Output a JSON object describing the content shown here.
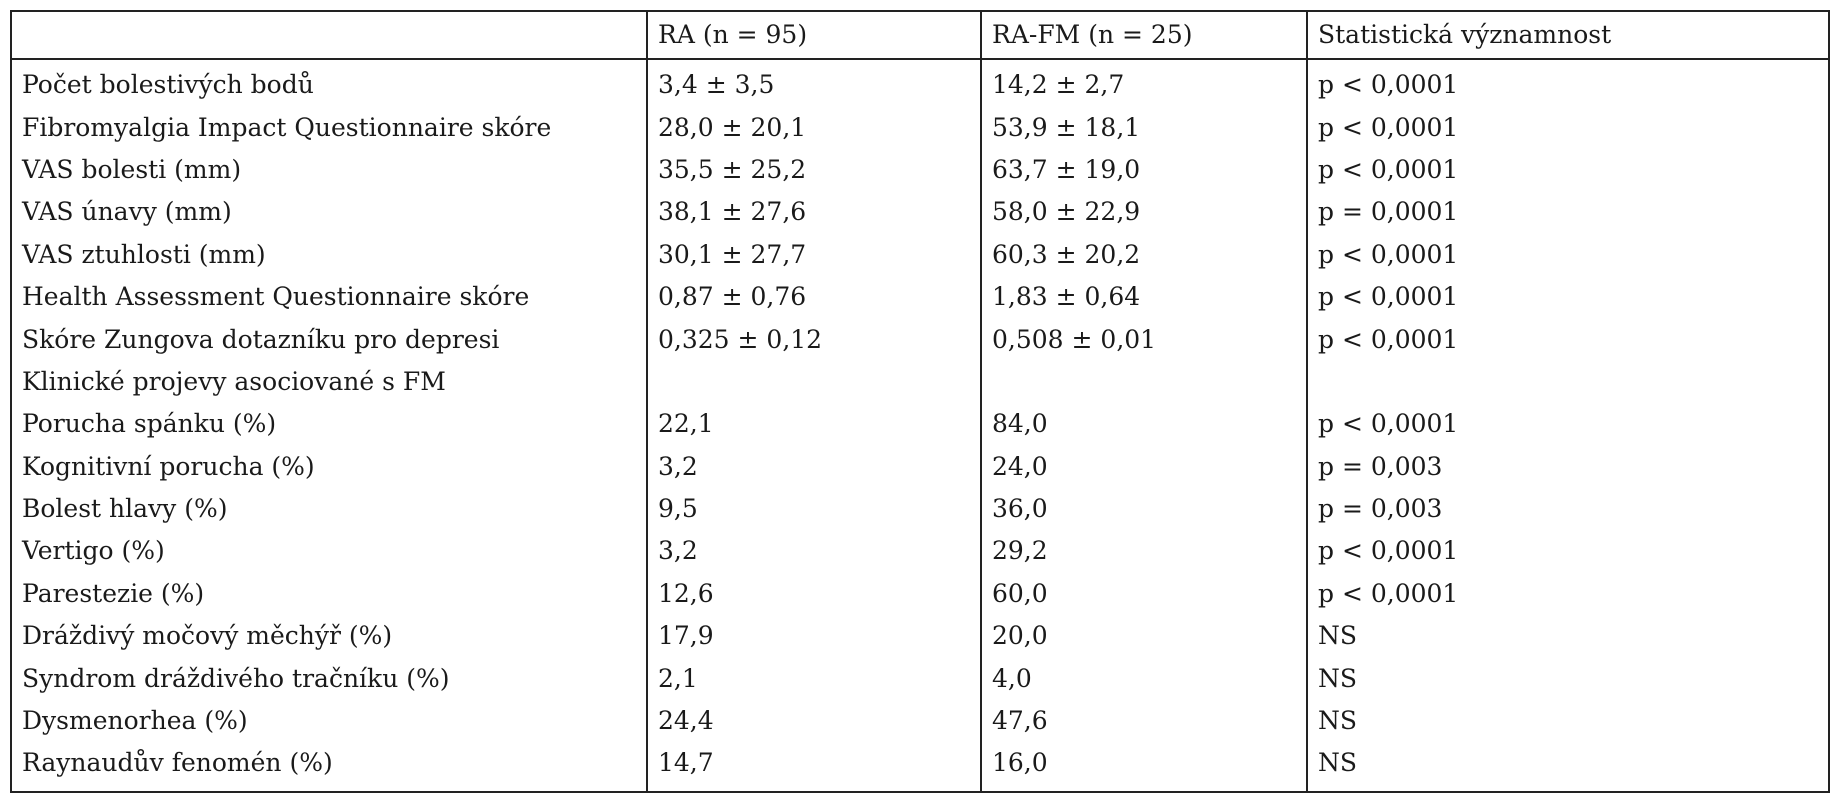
{
  "table": {
    "headers": [
      "",
      "RA (n = 95)",
      "RA-FM (n = 25)",
      "Statistická významnost"
    ],
    "rows": [
      [
        "Počet bolestivých bodů",
        "3,4 ± 3,5",
        "14,2 ± 2,7",
        "p < 0,0001"
      ],
      [
        "Fibromyalgia Impact Questionnaire skóre",
        "28,0 ± 20,1",
        "53,9 ± 18,1",
        "p < 0,0001"
      ],
      [
        "VAS bolesti (mm)",
        "35,5 ± 25,2",
        "63,7 ± 19,0",
        "p < 0,0001"
      ],
      [
        "VAS únavy (mm)",
        "38,1 ± 27,6",
        "58,0 ± 22,9",
        "p = 0,0001"
      ],
      [
        "VAS ztuhlosti (mm)",
        "30,1 ± 27,7",
        "60,3 ± 20,2",
        "p < 0,0001"
      ],
      [
        "Health Assessment Questionnaire skóre",
        "0,87 ± 0,76",
        "1,83 ± 0,64",
        "p < 0,0001"
      ],
      [
        "Skóre Zungova dotazníku pro depresi",
        "0,325 ± 0,12",
        "0,508 ± 0,01",
        "p < 0,0001"
      ],
      [
        "Klinické projevy asociované s FM",
        "",
        "",
        ""
      ],
      [
        "Porucha spánku (%)",
        "22,1",
        "84,0",
        "p < 0,0001"
      ],
      [
        "Kognitivní porucha (%)",
        "3,2",
        "24,0",
        "p = 0,003"
      ],
      [
        "Bolest hlavy (%)",
        "9,5",
        "36,0",
        "p = 0,003"
      ],
      [
        "Vertigo (%)",
        "3,2",
        "29,2",
        "p < 0,0001"
      ],
      [
        "Parestezie (%)",
        "12,6",
        "60,0",
        "p < 0,0001"
      ],
      [
        "Dráždivý močový měchýř (%)",
        "17,9",
        "20,0",
        "NS"
      ],
      [
        "Syndrom dráždivého tračníku (%)",
        "2,1",
        "4,0",
        "NS"
      ],
      [
        "Dysmenorhea (%)",
        "24,4",
        "47,6",
        "NS"
      ],
      [
        "Raynaudův fenomén (%)",
        "14,7",
        "16,0",
        "NS"
      ]
    ]
  }
}
